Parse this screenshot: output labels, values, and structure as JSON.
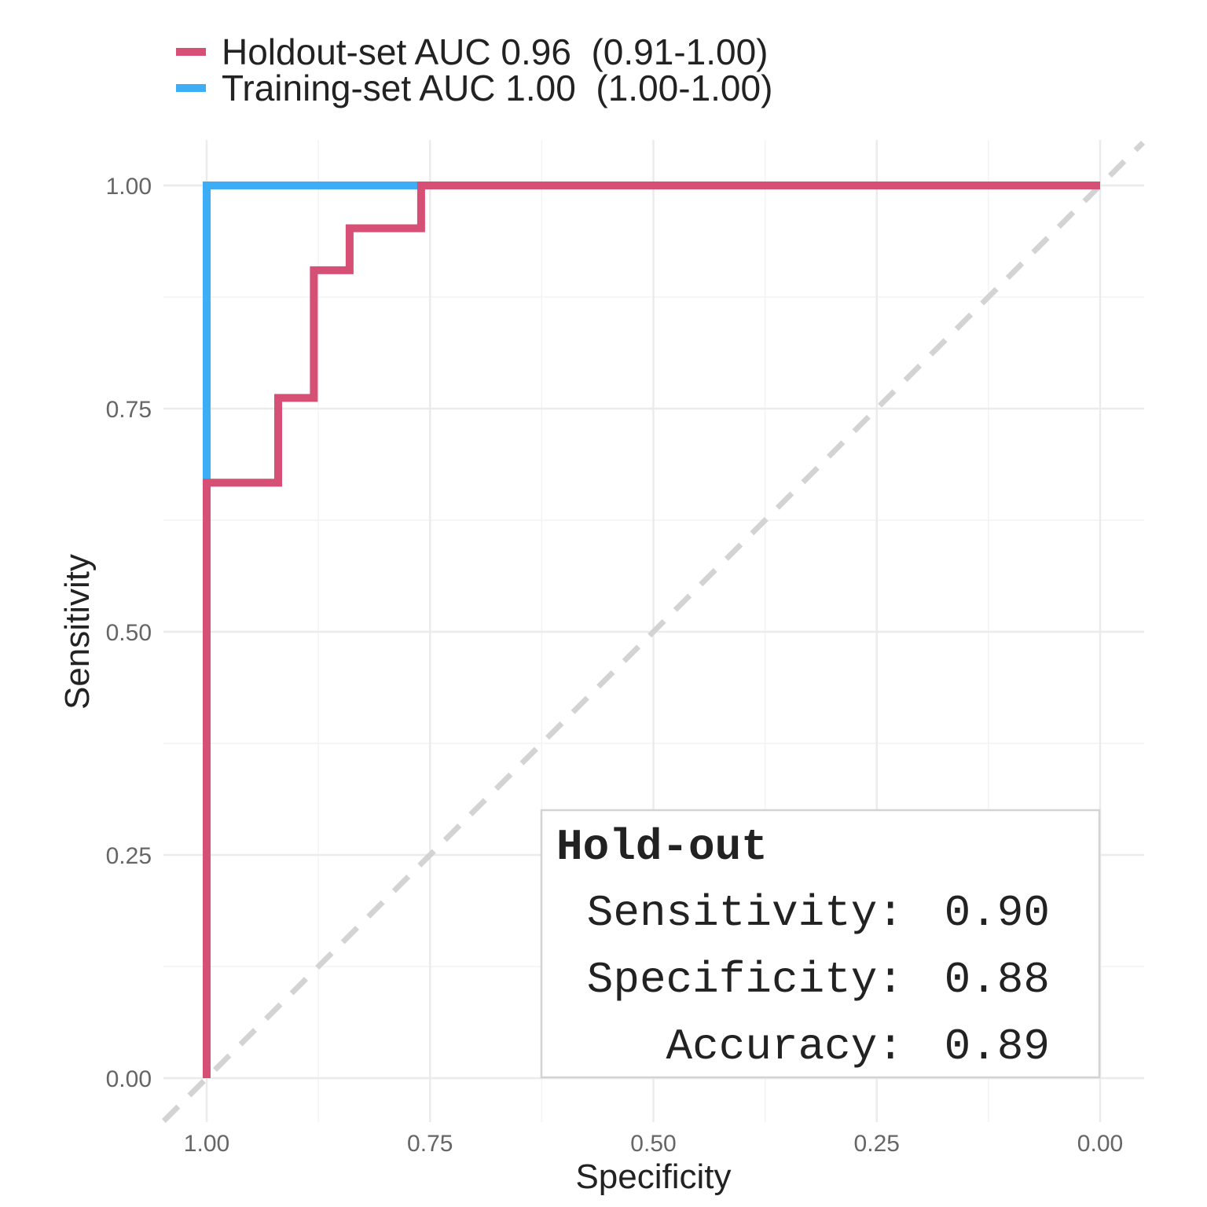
{
  "chart_data": {
    "type": "line",
    "xlabel": "Specificity",
    "ylabel": "Sensitivity",
    "x_reversed": true,
    "xlim": [
      1.0,
      0.0
    ],
    "ylim": [
      0.0,
      1.0
    ],
    "x_ticks": [
      1.0,
      0.75,
      0.5,
      0.25,
      0.0
    ],
    "y_ticks": [
      0.0,
      0.25,
      0.5,
      0.75,
      1.0
    ],
    "x_tick_labels": [
      "1.00",
      "0.75",
      "0.50",
      "0.25",
      "0.00"
    ],
    "y_tick_labels": [
      "0.00",
      "0.25",
      "0.50",
      "0.75",
      "1.00"
    ],
    "grid": true,
    "legend_position": "top-left",
    "reference_line": {
      "from": [
        1.0,
        0.0
      ],
      "to": [
        0.0,
        1.0
      ],
      "style": "dashed",
      "color": "#d3d3d3"
    },
    "series": [
      {
        "name": "Training-set AUC 1.00  (1.00-1.00)",
        "color": "#3daef5",
        "points": [
          [
            1.0,
            0.0
          ],
          [
            1.0,
            0.667
          ],
          [
            1.0,
            1.0
          ],
          [
            0.75,
            1.0
          ],
          [
            0.0,
            1.0
          ]
        ]
      },
      {
        "name": "Holdout-set AUC 0.96  (0.91-1.00)",
        "color": "#d64f75",
        "points": [
          [
            1.0,
            0.0
          ],
          [
            1.0,
            0.667
          ],
          [
            0.92,
            0.667
          ],
          [
            0.92,
            0.762
          ],
          [
            0.88,
            0.762
          ],
          [
            0.88,
            0.905
          ],
          [
            0.84,
            0.905
          ],
          [
            0.84,
            0.952
          ],
          [
            0.76,
            0.952
          ],
          [
            0.76,
            1.0
          ],
          [
            0.0,
            1.0
          ]
        ]
      }
    ],
    "annotation_box": {
      "title": "Hold-out",
      "lines": [
        {
          "label": "Sensitivity:",
          "value": "0.90"
        },
        {
          "label": "Specificity:",
          "value": "0.88"
        },
        {
          "label": "Accuracy:",
          "value": "0.89"
        }
      ]
    }
  }
}
